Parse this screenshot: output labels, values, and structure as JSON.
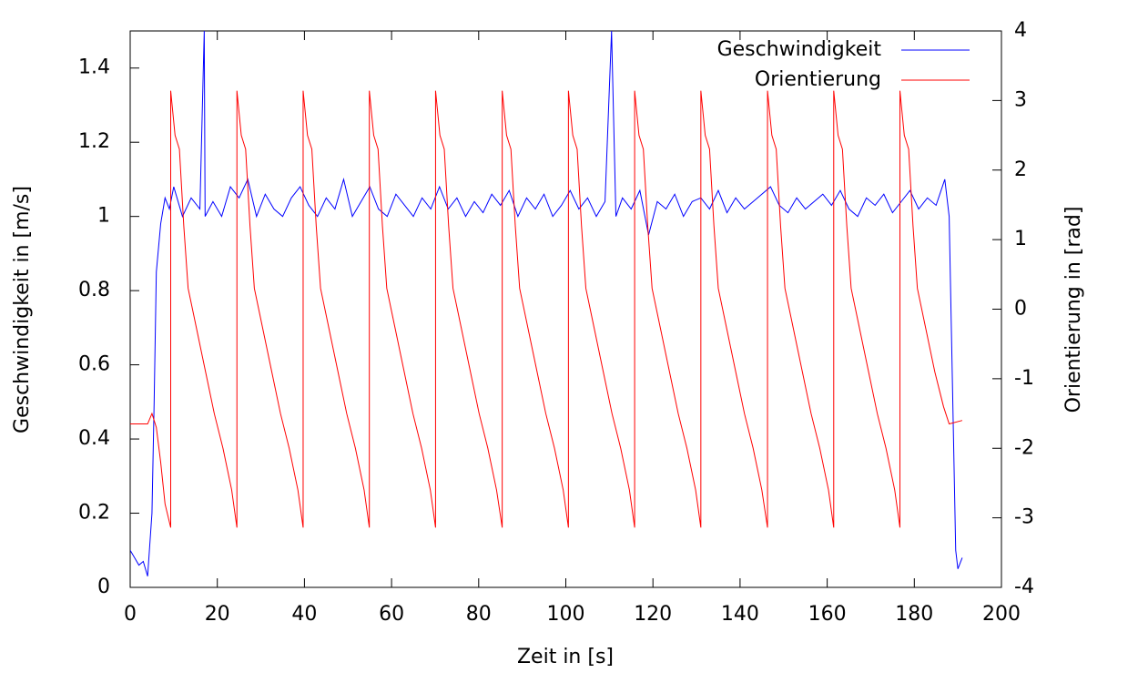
{
  "chart_data": {
    "type": "line",
    "xlabel": "Zeit in [s]",
    "ylabel": "Geschwindigkeit in [m/s]",
    "y2label": "Orientierung in [rad]",
    "xlim": [
      0,
      200
    ],
    "xticks": [
      0,
      20,
      40,
      60,
      80,
      100,
      120,
      140,
      160,
      180,
      200
    ],
    "ylim": [
      0,
      1.5
    ],
    "yticks": [
      0,
      0.2,
      0.4,
      0.6,
      0.8,
      1,
      1.2,
      1.4
    ],
    "y2lim": [
      -4,
      4
    ],
    "y2ticks": [
      -4,
      -3,
      -2,
      -1,
      0,
      1,
      2,
      3,
      4
    ],
    "legend": "upper right",
    "grid": false,
    "series": [
      {
        "name": "Geschwindigkeit",
        "color": "#0000ff",
        "x": [
          0,
          1,
          2,
          3,
          4,
          5,
          5.5,
          6,
          7,
          8,
          9,
          10,
          12,
          14,
          16,
          17,
          17.2,
          19,
          21,
          23,
          25,
          27,
          29,
          31,
          33,
          35,
          37,
          39,
          41,
          43,
          45,
          47,
          49,
          51,
          53,
          55,
          57,
          59,
          61,
          63,
          65,
          67,
          69,
          71,
          73,
          75,
          77,
          79,
          81,
          83,
          85,
          87,
          89,
          91,
          93,
          95,
          97,
          99,
          101,
          103,
          105,
          107,
          109,
          110.5,
          111.5,
          113,
          115,
          117,
          119,
          121,
          123,
          125,
          127,
          129,
          131,
          133,
          135,
          137,
          139,
          141,
          143,
          145,
          147,
          149,
          151,
          153,
          155,
          157,
          159,
          161,
          163,
          165,
          167,
          169,
          171,
          173,
          175,
          177,
          179,
          181,
          183,
          185,
          187,
          188,
          189,
          189.5,
          190,
          191
        ],
        "values": [
          0.1,
          0.08,
          0.06,
          0.07,
          0.03,
          0.2,
          0.5,
          0.85,
          0.98,
          1.05,
          1.02,
          1.08,
          1.0,
          1.05,
          1.02,
          1.5,
          1.0,
          1.04,
          1.0,
          1.08,
          1.05,
          1.1,
          1.0,
          1.06,
          1.02,
          1.0,
          1.05,
          1.08,
          1.03,
          1.0,
          1.05,
          1.02,
          1.1,
          1.0,
          1.04,
          1.08,
          1.02,
          1.0,
          1.06,
          1.03,
          1.0,
          1.05,
          1.02,
          1.08,
          1.02,
          1.05,
          1.0,
          1.04,
          1.01,
          1.06,
          1.03,
          1.07,
          1.0,
          1.05,
          1.02,
          1.06,
          1.0,
          1.03,
          1.07,
          1.02,
          1.05,
          1.0,
          1.04,
          1.5,
          1.0,
          1.05,
          1.02,
          1.07,
          0.95,
          1.04,
          1.02,
          1.06,
          1.0,
          1.04,
          1.05,
          1.02,
          1.07,
          1.01,
          1.05,
          1.02,
          1.04,
          1.06,
          1.08,
          1.03,
          1.01,
          1.05,
          1.02,
          1.04,
          1.06,
          1.03,
          1.07,
          1.02,
          1.0,
          1.05,
          1.03,
          1.06,
          1.01,
          1.04,
          1.07,
          1.02,
          1.05,
          1.03,
          1.1,
          1.0,
          0.4,
          0.1,
          0.05,
          0.08
        ]
      },
      {
        "name": "Orientierung",
        "color": "#ff0000",
        "axis": "y2",
        "x": [
          0,
          4,
          5,
          6,
          7,
          8,
          9.3,
          9.3,
          10.3,
          11.3,
          12.3,
          13.3,
          15.3,
          17.3,
          19.3,
          21.3,
          23.3,
          24.5,
          24.5,
          25.5,
          26.5,
          27.5,
          28.5,
          30.5,
          32.5,
          34.5,
          36.5,
          38.5,
          39.7,
          39.7,
          40.7,
          41.7,
          42.7,
          43.7,
          45.7,
          47.7,
          49.7,
          51.7,
          53.7,
          54.9,
          54.9,
          55.9,
          56.9,
          57.9,
          58.9,
          60.9,
          62.9,
          64.9,
          66.9,
          68.9,
          70.1,
          70.1,
          71.1,
          72.1,
          73.1,
          74.1,
          76.1,
          78.1,
          80.1,
          82.1,
          84.1,
          85.4,
          85.4,
          86.4,
          87.4,
          88.4,
          89.4,
          91.4,
          93.4,
          95.4,
          97.4,
          99.4,
          100.6,
          100.6,
          101.6,
          102.6,
          103.6,
          104.6,
          106.6,
          108.6,
          110.6,
          112.6,
          114.6,
          115.8,
          115.8,
          116.8,
          117.8,
          118.8,
          119.8,
          121.8,
          123.8,
          125.8,
          127.8,
          129.8,
          131,
          131,
          132,
          133,
          134,
          135,
          137,
          139,
          141,
          143,
          145,
          146.3,
          146.3,
          147.3,
          148.3,
          149.3,
          150.3,
          152.3,
          154.3,
          156.3,
          158.3,
          160.3,
          161.5,
          161.5,
          162.5,
          163.5,
          164.5,
          165.5,
          167.5,
          169.5,
          171.5,
          173.5,
          175.5,
          176.7,
          176.7,
          177.7,
          178.7,
          179.7,
          180.7,
          182.7,
          184.7,
          186.7,
          188,
          191
        ],
        "values": [
          -1.65,
          -1.65,
          -1.5,
          -1.7,
          -2.2,
          -2.8,
          -3.14,
          3.14,
          2.5,
          2.3,
          1.2,
          0.3,
          -0.3,
          -0.9,
          -1.5,
          -2.0,
          -2.6,
          -3.14,
          3.14,
          2.5,
          2.3,
          1.2,
          0.3,
          -0.3,
          -0.9,
          -1.5,
          -2.0,
          -2.6,
          -3.14,
          3.14,
          2.5,
          2.3,
          1.2,
          0.3,
          -0.3,
          -0.9,
          -1.5,
          -2.0,
          -2.6,
          -3.14,
          3.14,
          2.5,
          2.3,
          1.2,
          0.3,
          -0.3,
          -0.9,
          -1.5,
          -2.0,
          -2.6,
          -3.14,
          3.14,
          2.5,
          2.3,
          1.2,
          0.3,
          -0.3,
          -0.9,
          -1.5,
          -2.0,
          -2.6,
          -3.14,
          3.14,
          2.5,
          2.3,
          1.2,
          0.3,
          -0.3,
          -0.9,
          -1.5,
          -2.0,
          -2.6,
          -3.14,
          3.14,
          2.5,
          2.3,
          1.2,
          0.3,
          -0.3,
          -0.9,
          -1.5,
          -2.0,
          -2.6,
          -3.14,
          3.14,
          2.5,
          2.3,
          1.2,
          0.3,
          -0.3,
          -0.9,
          -1.5,
          -2.0,
          -2.6,
          -3.14,
          3.14,
          2.5,
          2.3,
          1.2,
          0.3,
          -0.3,
          -0.9,
          -1.5,
          -2.0,
          -2.6,
          -3.14,
          3.14,
          2.5,
          2.3,
          1.2,
          0.3,
          -0.3,
          -0.9,
          -1.5,
          -2.0,
          -2.6,
          -3.14,
          3.14,
          2.5,
          2.3,
          1.2,
          0.3,
          -0.3,
          -0.9,
          -1.5,
          -2.0,
          -2.6,
          -3.14,
          3.14,
          2.5,
          2.3,
          1.2,
          0.3,
          -0.3,
          -0.9,
          -1.4,
          -1.65,
          -1.6
        ]
      }
    ]
  }
}
